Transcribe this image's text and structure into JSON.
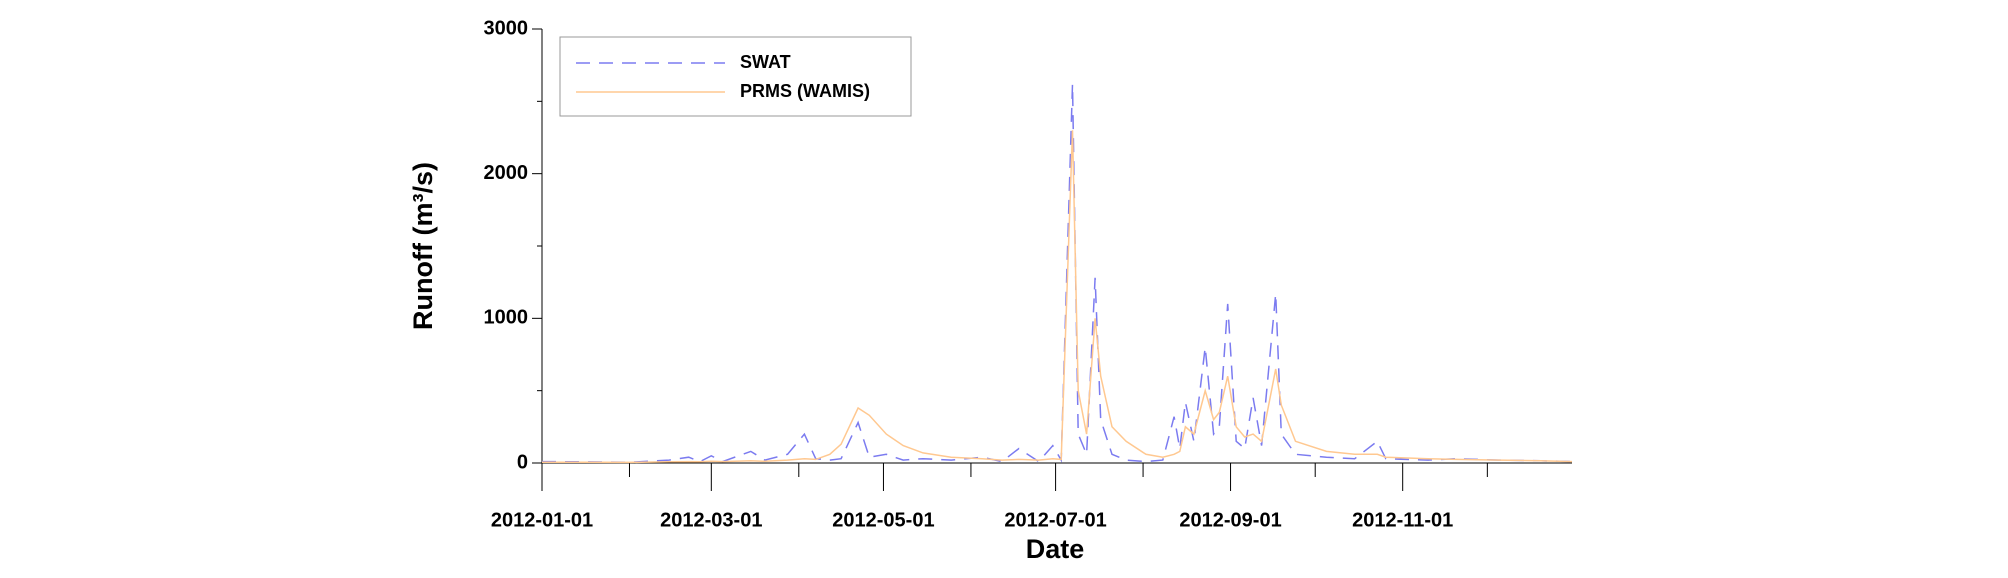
{
  "chart_data": {
    "type": "line",
    "x_label": "Date",
    "y_label": "Runoff (m³/s)",
    "x": [
      "2012-01-01",
      "2012-01-15",
      "2012-02-01",
      "2012-02-15",
      "2012-02-22",
      "2012-02-26",
      "2012-03-01",
      "2012-03-05",
      "2012-03-15",
      "2012-03-20",
      "2012-03-28",
      "2012-04-03",
      "2012-04-07",
      "2012-04-12",
      "2012-04-16",
      "2012-04-22",
      "2012-04-26",
      "2012-05-02",
      "2012-05-08",
      "2012-05-15",
      "2012-05-25",
      "2012-06-05",
      "2012-06-12",
      "2012-06-18",
      "2012-06-25",
      "2012-06-30",
      "2012-07-03",
      "2012-07-07",
      "2012-07-09",
      "2012-07-12",
      "2012-07-15",
      "2012-07-17",
      "2012-07-21",
      "2012-07-26",
      "2012-08-02",
      "2012-08-08",
      "2012-08-12",
      "2012-08-14",
      "2012-08-16",
      "2012-08-19",
      "2012-08-23",
      "2012-08-26",
      "2012-08-28",
      "2012-08-31",
      "2012-09-03",
      "2012-09-06",
      "2012-09-09",
      "2012-09-12",
      "2012-09-17",
      "2012-09-19",
      "2012-09-24",
      "2012-10-05",
      "2012-10-15",
      "2012-10-23",
      "2012-10-26",
      "2012-11-10",
      "2012-11-20",
      "2012-12-05",
      "2012-12-20",
      "2012-12-31"
    ],
    "series": [
      {
        "name": "SWAT",
        "color": "#7b7bf0",
        "dash": "14,9",
        "values": [
          10,
          8,
          5,
          20,
          40,
          10,
          50,
          10,
          80,
          20,
          60,
          200,
          30,
          20,
          30,
          280,
          40,
          60,
          20,
          30,
          20,
          40,
          10,
          100,
          10,
          120,
          20,
          2620,
          200,
          60,
          1280,
          300,
          60,
          20,
          10,
          20,
          320,
          100,
          420,
          150,
          800,
          200,
          250,
          1100,
          150,
          100,
          450,
          120,
          1170,
          200,
          60,
          40,
          30,
          150,
          30,
          20,
          30,
          20,
          15,
          10
        ]
      },
      {
        "name": "PRMS (WAMIS)",
        "color": "#ffc890",
        "dash": "none",
        "values": [
          5,
          5,
          4,
          8,
          10,
          8,
          12,
          10,
          15,
          12,
          20,
          30,
          25,
          60,
          130,
          380,
          330,
          200,
          120,
          70,
          40,
          30,
          20,
          25,
          20,
          30,
          25,
          2300,
          500,
          200,
          1000,
          600,
          250,
          150,
          60,
          40,
          60,
          80,
          250,
          200,
          500,
          300,
          350,
          600,
          250,
          180,
          200,
          150,
          650,
          400,
          150,
          80,
          60,
          60,
          40,
          30,
          25,
          20,
          15,
          10
        ]
      }
    ],
    "xlim": [
      "2012-01-01",
      "2012-12-31"
    ],
    "xticks": [
      "2012-01-01",
      "2012-03-01",
      "2012-05-01",
      "2012-07-01",
      "2012-09-01",
      "2012-11-01"
    ],
    "xminorticks": [
      "2012-02-01",
      "2012-04-01",
      "2012-06-01",
      "2012-08-01",
      "2012-10-01",
      "2012-12-01"
    ],
    "ylim": [
      0,
      3000
    ],
    "yticks": [
      0,
      1000,
      2000,
      3000
    ],
    "yminorticks": [
      500,
      1500,
      2500
    ],
    "legend": "upper left"
  }
}
